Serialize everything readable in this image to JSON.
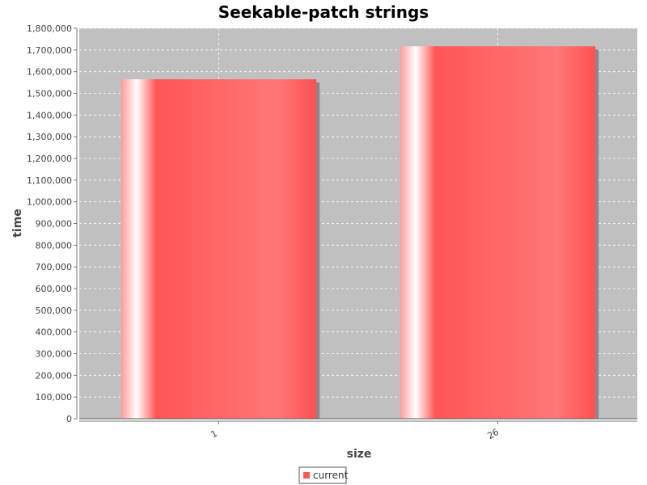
{
  "chart_data": {
    "type": "bar",
    "title": "Seekable-patch strings",
    "xlabel": "size",
    "ylabel": "time",
    "categories": [
      "1",
      "26"
    ],
    "series": [
      {
        "name": "current",
        "values": [
          1565000,
          1717000
        ],
        "color": "#ff5555"
      }
    ],
    "ylim": [
      0,
      1800000
    ],
    "yticks": [
      0,
      100000,
      200000,
      300000,
      400000,
      500000,
      600000,
      700000,
      800000,
      900000,
      1000000,
      1100000,
      1200000,
      1300000,
      1400000,
      1500000,
      1600000,
      1700000,
      1800000
    ],
    "ytick_labels": [
      "0",
      "100,000",
      "200,000",
      "300,000",
      "400,000",
      "500,000",
      "600,000",
      "700,000",
      "800,000",
      "900,000",
      "1,000,000",
      "1,100,000",
      "1,200,000",
      "1,300,000",
      "1,400,000",
      "1,500,000",
      "1,600,000",
      "1,700,000",
      "1,800,000"
    ],
    "grid": true,
    "legend_position": "bottom",
    "plot_background": "#c0c0c0"
  }
}
